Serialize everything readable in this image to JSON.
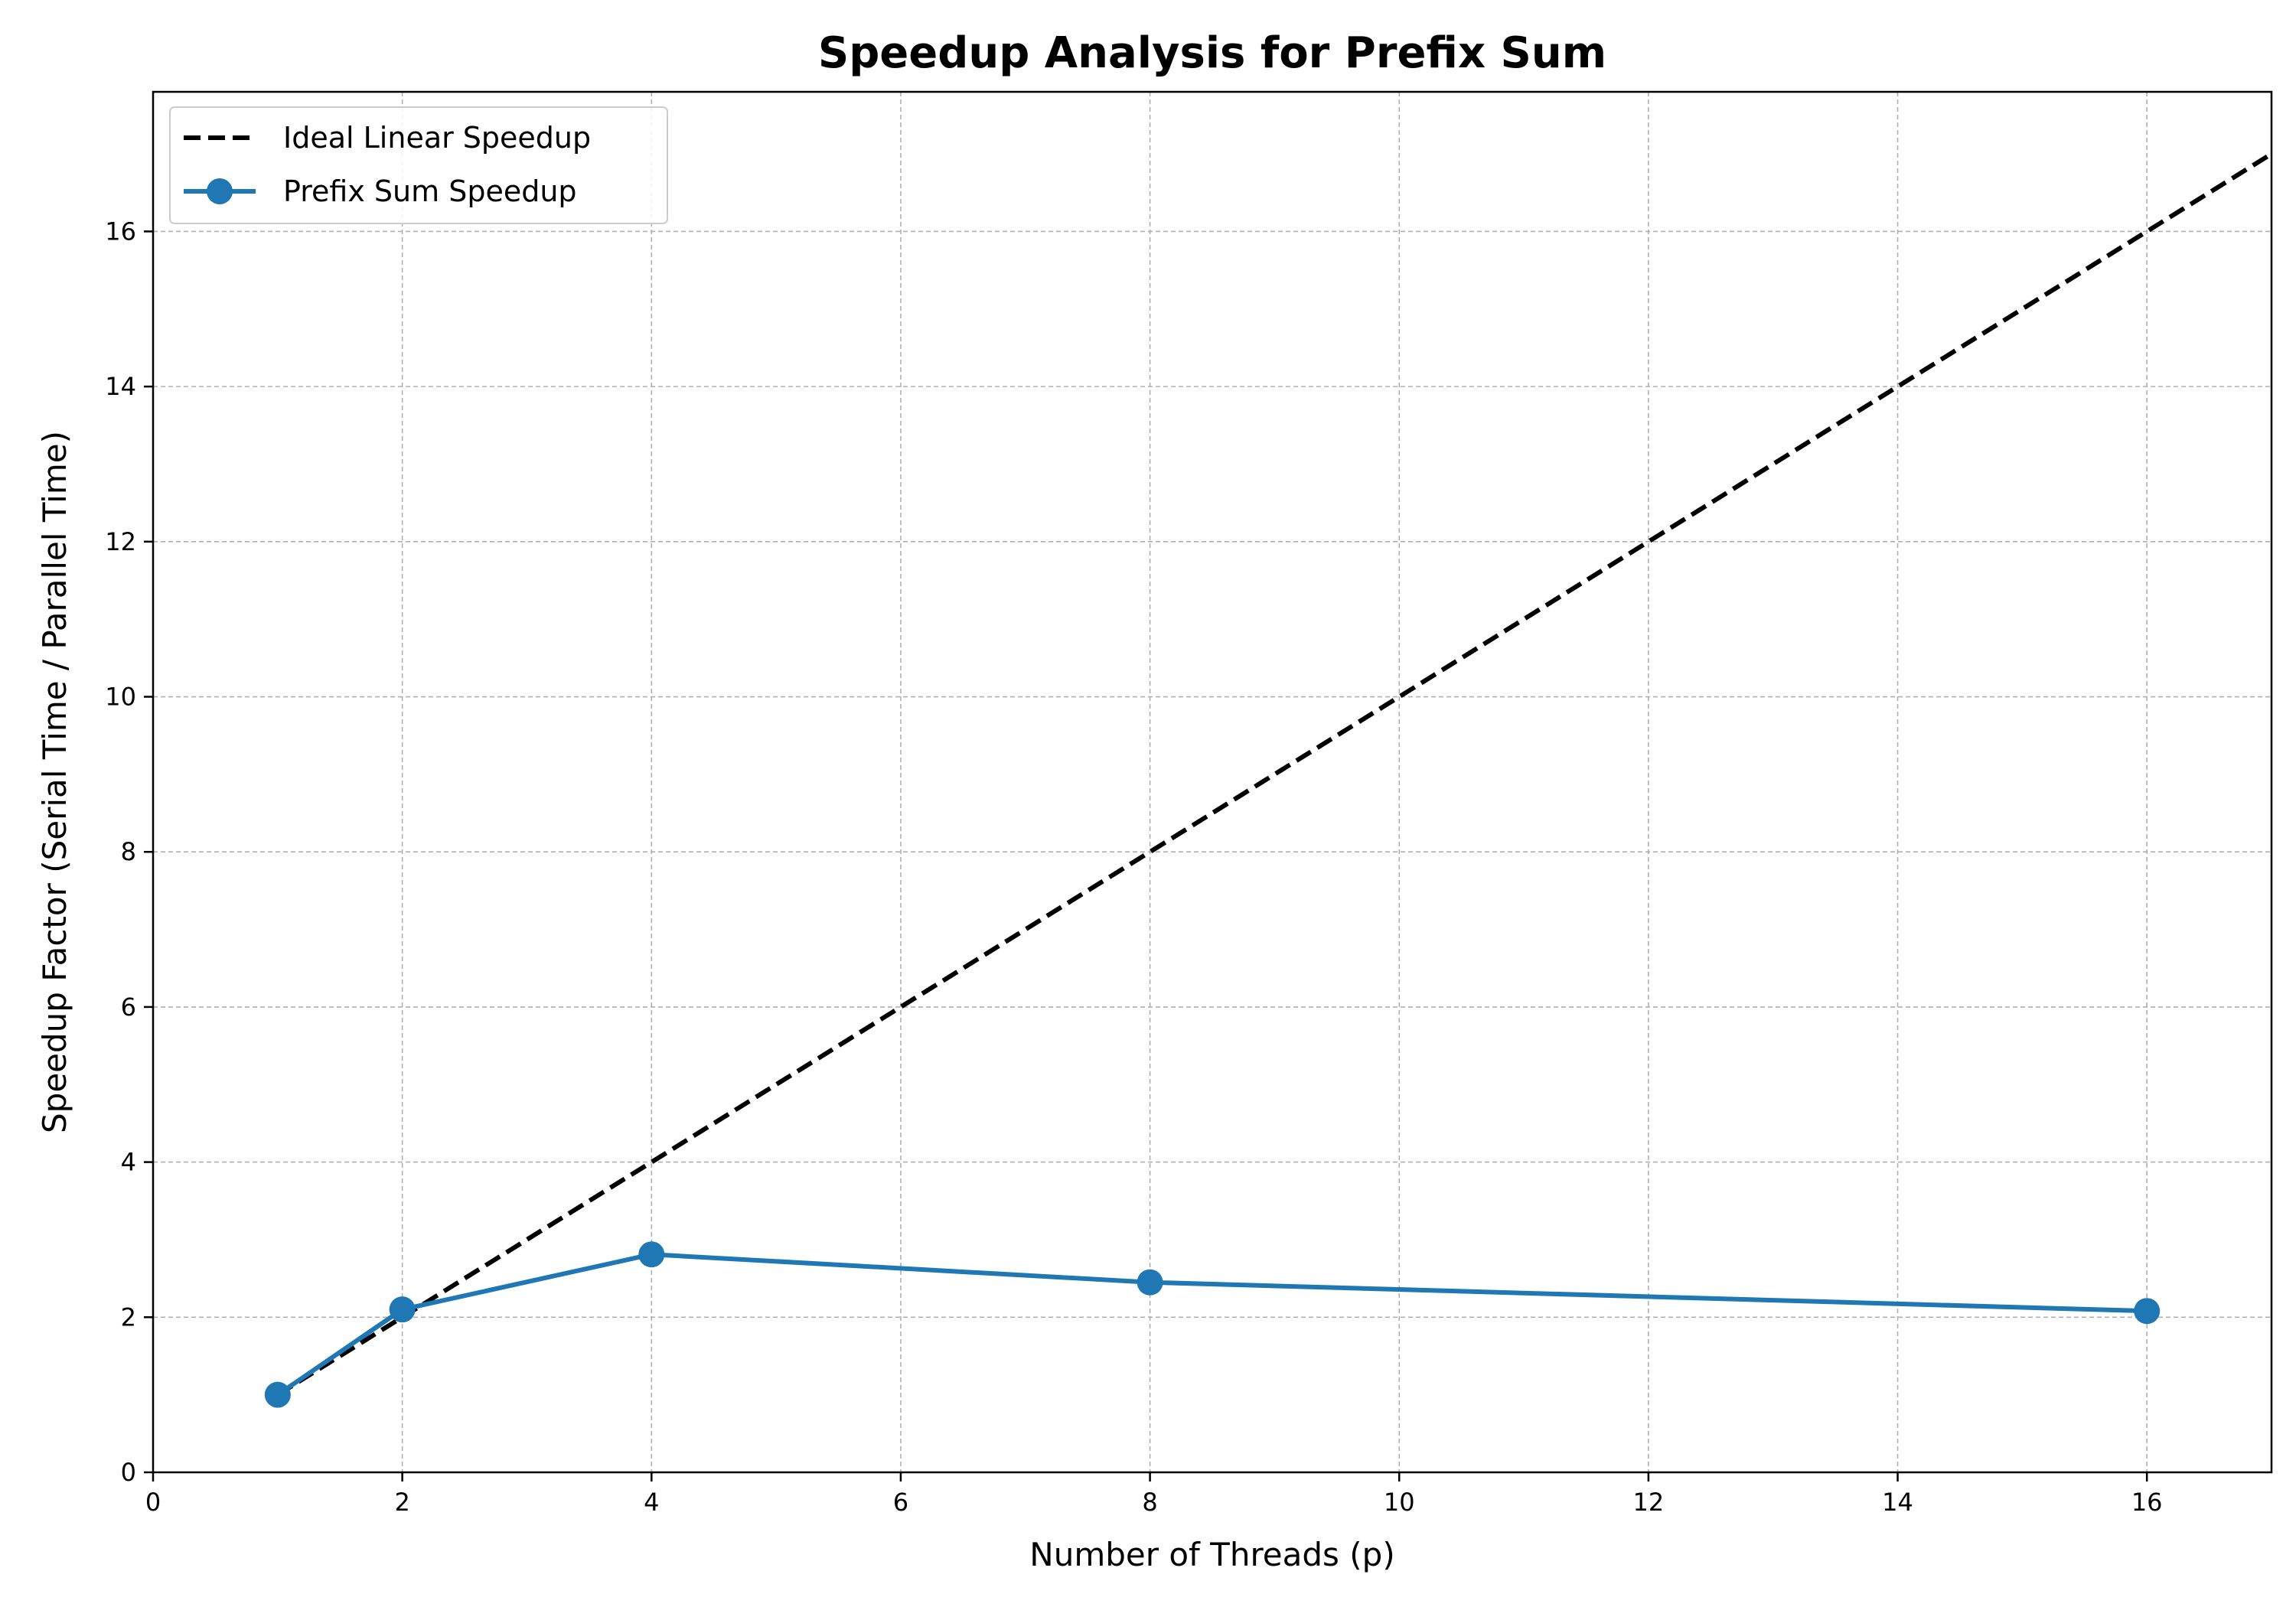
{
  "chart_data": {
    "type": "line",
    "title": "Speedup Analysis for Prefix Sum",
    "xlabel": "Number of Threads (p)",
    "ylabel": "Speedup Factor (Serial Time / Parallel Time)",
    "xlim": [
      0,
      17
    ],
    "ylim": [
      0,
      17.8
    ],
    "xticks": [
      0,
      2,
      4,
      6,
      8,
      10,
      12,
      14,
      16
    ],
    "yticks": [
      0,
      2,
      4,
      6,
      8,
      10,
      12,
      14,
      16
    ],
    "grid": true,
    "legend_position": "top-left",
    "series": [
      {
        "name": "Ideal Linear Speedup",
        "style": "dashed",
        "markers": false,
        "color": "#000000",
        "x": [
          1,
          17
        ],
        "y": [
          1,
          17
        ]
      },
      {
        "name": "Prefix Sum Speedup",
        "style": "solid",
        "markers": true,
        "color": "#1f77b4",
        "x": [
          1,
          2,
          4,
          8,
          16
        ],
        "y": [
          1.0,
          2.1,
          2.81,
          2.45,
          2.08
        ]
      }
    ]
  }
}
